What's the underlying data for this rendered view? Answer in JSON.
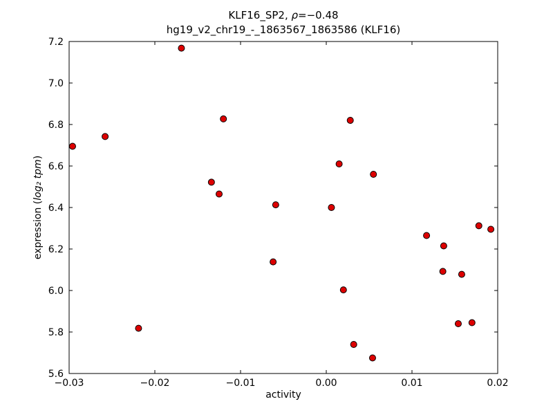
{
  "chart_data": {
    "type": "scatter",
    "title": "KLF16_SP2, ρ=−0.48",
    "title_prefix": "KLF16_SP2, ",
    "title_rho": "ρ",
    "title_value": "=−0.48",
    "subtitle": "hg19_v2_chr19_-_1863567_1863586 (KLF16)",
    "xlabel": "activity",
    "ylabel_prefix": "expression (",
    "ylabel_math": "log₂ tpm",
    "ylabel_suffix": ")",
    "xlim": [
      -0.03,
      0.02
    ],
    "ylim": [
      5.6,
      7.2
    ],
    "xticks": [
      -0.03,
      -0.02,
      -0.01,
      0.0,
      0.01,
      0.02
    ],
    "xtick_labels": [
      "−0.03",
      "−0.02",
      "−0.01",
      "0.00",
      "0.01",
      "0.02"
    ],
    "yticks": [
      5.6,
      5.8,
      6.0,
      6.2,
      6.4,
      6.6,
      6.8,
      7.0,
      7.2
    ],
    "ytick_labels": [
      "5.6",
      "5.8",
      "6.0",
      "6.2",
      "6.4",
      "6.6",
      "6.8",
      "7.0",
      "7.2"
    ],
    "grid": false,
    "legend": "none",
    "marker": {
      "shape": "circle",
      "color": "#dd0000",
      "edge_color": "#000000",
      "radius": 4.5
    },
    "points": [
      [
        -0.0296,
        6.695
      ],
      [
        -0.0258,
        6.742
      ],
      [
        -0.0219,
        5.818
      ],
      [
        -0.0169,
        7.168
      ],
      [
        -0.0134,
        6.522
      ],
      [
        -0.0125,
        6.465
      ],
      [
        -0.012,
        6.827
      ],
      [
        -0.0062,
        6.138
      ],
      [
        -0.0059,
        6.413
      ],
      [
        0.0006,
        6.4
      ],
      [
        0.0015,
        6.61
      ],
      [
        0.002,
        6.003
      ],
      [
        0.0028,
        6.82
      ],
      [
        0.0032,
        5.74
      ],
      [
        0.0054,
        5.675
      ],
      [
        0.0055,
        6.56
      ],
      [
        0.0117,
        6.265
      ],
      [
        0.0136,
        6.092
      ],
      [
        0.0137,
        6.215
      ],
      [
        0.0154,
        5.84
      ],
      [
        0.0158,
        6.078
      ],
      [
        0.017,
        5.845
      ],
      [
        0.0178,
        6.312
      ],
      [
        0.0192,
        6.295
      ]
    ]
  }
}
